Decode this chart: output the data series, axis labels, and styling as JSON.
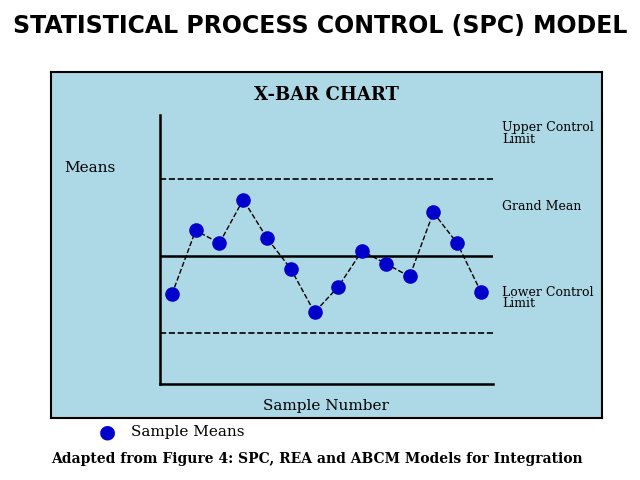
{
  "title": "STATISTICAL PROCESS CONTROL (SPC) MODEL",
  "chart_title": "X-BAR CHART",
  "xlabel": "Sample Number",
  "ylabel": "Means",
  "background_color": "#ADD8E6",
  "outer_bg": "#FFFFFF",
  "dot_color": "#0000CC",
  "line_color": "#000000",
  "grand_mean": 0.5,
  "ucl": 0.8,
  "lcl": 0.2,
  "data_x": [
    1,
    2,
    3,
    4,
    5,
    6,
    7,
    8,
    9,
    10,
    11,
    12,
    13,
    14
  ],
  "data_y": [
    0.35,
    0.6,
    0.55,
    0.72,
    0.57,
    0.45,
    0.28,
    0.38,
    0.52,
    0.47,
    0.42,
    0.67,
    0.55,
    0.36
  ],
  "legend_label": "Sample Means",
  "caption": "Adapted from Figure 4: SPC, REA and ABCM Models for Integration",
  "title_fontsize": 17,
  "chart_title_fontsize": 13,
  "label_fontsize": 11,
  "caption_fontsize": 10
}
